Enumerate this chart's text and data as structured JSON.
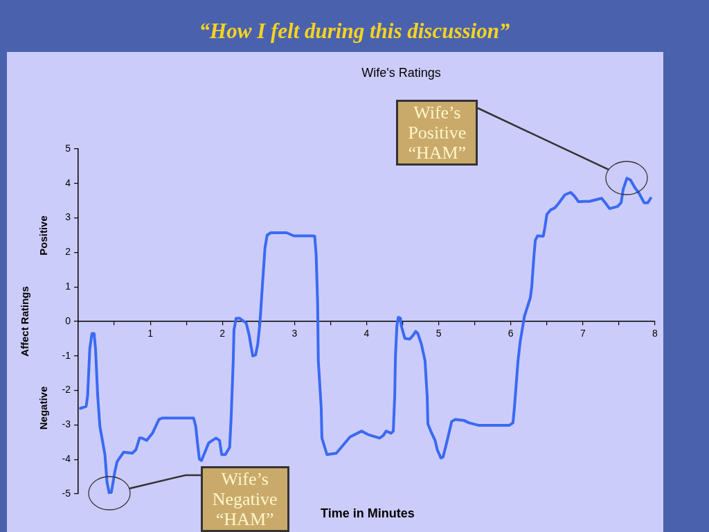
{
  "chart_data": {
    "type": "line",
    "title": "“How I felt during this discussion”",
    "subtitle": "Wife's Ratings",
    "xlabel": "Time in Minutes",
    "ylabel": "Affect Ratings",
    "annotations": [
      "Wife’s Positive “HAM”",
      "Wife’s Negative “HAM”",
      "Positive",
      "Negative"
    ],
    "x": [
      0.03,
      0.11,
      0.13,
      0.16,
      0.19,
      0.22,
      0.24,
      0.27,
      0.3,
      0.37,
      0.4,
      0.43,
      0.46,
      0.51,
      0.54,
      0.63,
      0.75,
      0.8,
      0.85,
      0.88,
      0.95,
      1.03,
      1.12,
      1.17,
      1.6,
      1.63,
      1.65,
      1.68,
      1.71,
      1.81,
      1.91,
      1.96,
      1.99,
      2.04,
      2.1,
      2.12,
      2.15,
      2.16,
      2.19,
      2.24,
      2.33,
      2.37,
      2.42,
      2.46,
      2.49,
      2.52,
      2.55,
      2.59,
      2.62,
      2.67,
      2.89,
      2.99,
      3.25,
      3.28,
      3.3,
      3.32,
      3.33,
      3.37,
      3.38,
      3.45,
      3.58,
      3.77,
      3.93,
      4.02,
      4.18,
      4.23,
      4.27,
      4.34,
      4.37,
      4.39,
      4.4,
      4.42,
      4.44,
      4.47,
      4.48,
      4.53,
      4.6,
      4.65,
      4.68,
      4.71,
      4.76,
      4.81,
      4.84,
      4.85,
      4.89,
      4.95,
      4.98,
      5.03,
      5.06,
      5.11,
      5.18,
      5.23,
      5.35,
      5.42,
      5.55,
      5.98,
      6.03,
      6.05,
      6.1,
      6.13,
      6.19,
      6.27,
      6.29,
      6.32,
      6.34,
      6.37,
      6.45,
      6.47,
      6.5,
      6.55,
      6.61,
      6.67,
      6.75,
      6.83,
      6.88,
      6.94,
      7.01,
      7.09,
      7.26,
      7.31,
      7.37,
      7.48,
      7.53,
      7.56,
      7.61,
      7.66,
      7.72,
      7.78,
      7.85,
      7.9,
      7.94
    ],
    "series": [
      {
        "color": "#3a6af2",
        "values": [
          -2.52,
          -2.46,
          -2.16,
          -0.8,
          -0.35,
          -0.35,
          -0.8,
          -2.16,
          -3.04,
          -3.86,
          -4.67,
          -4.98,
          -4.95,
          -4.33,
          -4.06,
          -3.79,
          -3.82,
          -3.72,
          -3.38,
          -3.38,
          -3.45,
          -3.24,
          -2.84,
          -2.8,
          -2.8,
          -3.04,
          -3.45,
          -3.99,
          -4.03,
          -3.52,
          -3.38,
          -3.45,
          -3.86,
          -3.86,
          -3.65,
          -2.84,
          -1.14,
          -0.25,
          0.09,
          0.09,
          -0.05,
          -0.39,
          -1.0,
          -0.97,
          -0.66,
          -0.05,
          0.9,
          2.13,
          2.5,
          2.57,
          2.57,
          2.48,
          2.48,
          2.47,
          1.93,
          0.56,
          -1.14,
          -2.5,
          -3.38,
          -3.86,
          -3.82,
          -3.35,
          -3.18,
          -3.28,
          -3.38,
          -3.31,
          -3.18,
          -3.24,
          -3.18,
          -2.16,
          -1.0,
          -0.12,
          0.12,
          0.09,
          -0.12,
          -0.49,
          -0.51,
          -0.39,
          -0.29,
          -0.35,
          -0.66,
          -1.14,
          -2.16,
          -2.97,
          -3.18,
          -3.45,
          -3.72,
          -3.96,
          -3.93,
          -3.52,
          -2.9,
          -2.84,
          -2.87,
          -2.94,
          -3.01,
          -3.01,
          -2.94,
          -2.5,
          -1.14,
          -0.59,
          0.16,
          0.68,
          0.99,
          1.87,
          2.35,
          2.48,
          2.47,
          2.69,
          3.1,
          3.23,
          3.29,
          3.44,
          3.67,
          3.74,
          3.64,
          3.47,
          3.48,
          3.48,
          3.57,
          3.44,
          3.27,
          3.33,
          3.44,
          3.84,
          4.15,
          4.1,
          3.88,
          3.71,
          3.44,
          3.44,
          3.57
        ]
      }
    ],
    "xlim": [
      0,
      8
    ],
    "xticks": [
      {
        "value": 0.5,
        "label": null
      },
      1,
      {
        "value": 1.5,
        "label": null
      },
      2,
      {
        "value": 2.5,
        "label": null
      },
      3,
      {
        "value": 3.5,
        "label": null
      },
      4,
      {
        "value": 4.5,
        "label": null
      },
      5,
      {
        "value": 5.5,
        "label": null
      },
      6,
      {
        "value": 6.5,
        "label": null
      },
      7,
      {
        "value": 7.5,
        "label": null
      },
      8
    ],
    "ylim": [
      -5,
      5
    ],
    "yticks": [
      -5,
      -4,
      -3,
      -2,
      -1,
      0,
      1,
      2,
      3,
      4,
      5
    ]
  }
}
